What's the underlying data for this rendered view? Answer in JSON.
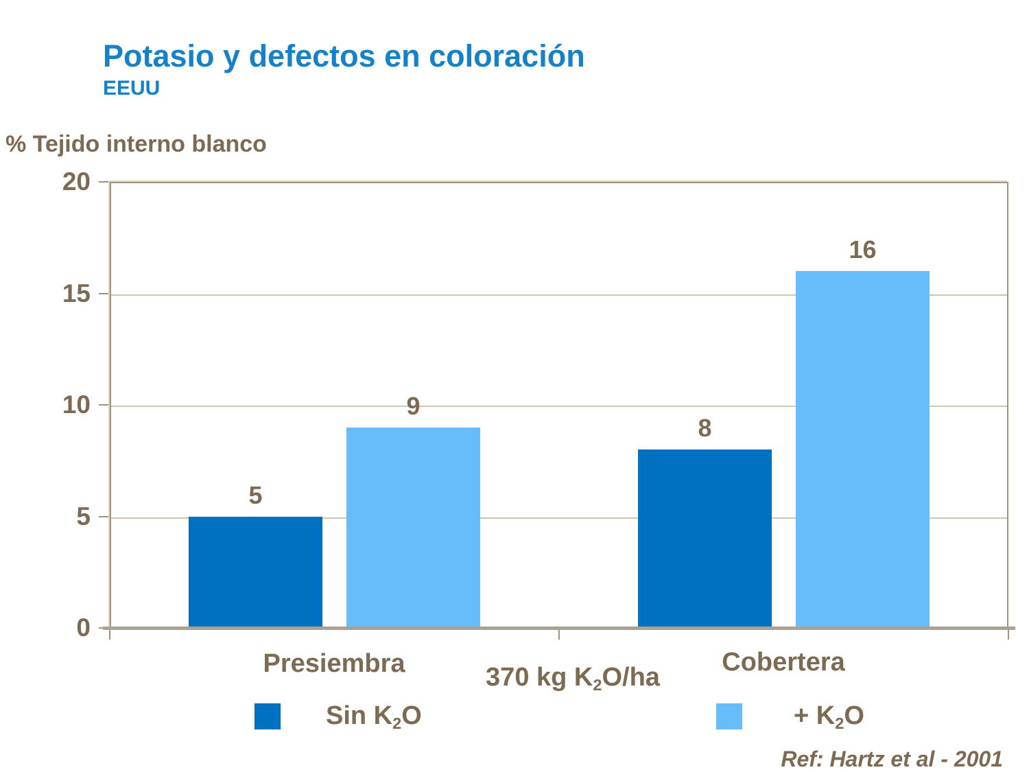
{
  "chart_data": {
    "type": "bar",
    "title": "Potasio y defectos en coloración",
    "subtitle": "EEUU",
    "ylabel": "% Tejido interno blanco",
    "categories": [
      "Presiembra",
      "Cobertera"
    ],
    "series": [
      {
        "name": "Sin K₂O",
        "parts": {
          "pre": "Sin K",
          "sub": "2",
          "post": "O"
        },
        "color": "#0070C0",
        "values": [
          5,
          8
        ]
      },
      {
        "name": "+ K₂O",
        "parts": {
          "pre": "+ K",
          "sub": "2",
          "post": "O"
        },
        "color": "#67BDFA",
        "values": [
          9,
          16
        ]
      }
    ],
    "data_labels": [
      5,
      9,
      8,
      16
    ],
    "center_note": {
      "text": "370 kg K₂O/ha",
      "parts": {
        "pre": "370 kg K",
        "sub": "2",
        "post": "O/ha"
      }
    },
    "ylim": [
      0,
      20
    ],
    "yticks": [
      0,
      5,
      10,
      15,
      20
    ],
    "grid": true,
    "legend_position": "bottom"
  },
  "footer": {
    "reference": "Ref: Hartz et al - 2001"
  },
  "colors": {
    "title_blue": "#1581C9",
    "text_brown": "#7C6A52",
    "frame_tan": "#A1937A",
    "gridline_tan": "#CFC5B3",
    "baseline_tan": "#ABA092",
    "bar_dark_blue": "#0070C0",
    "bar_light_blue": "#67BDFA"
  }
}
